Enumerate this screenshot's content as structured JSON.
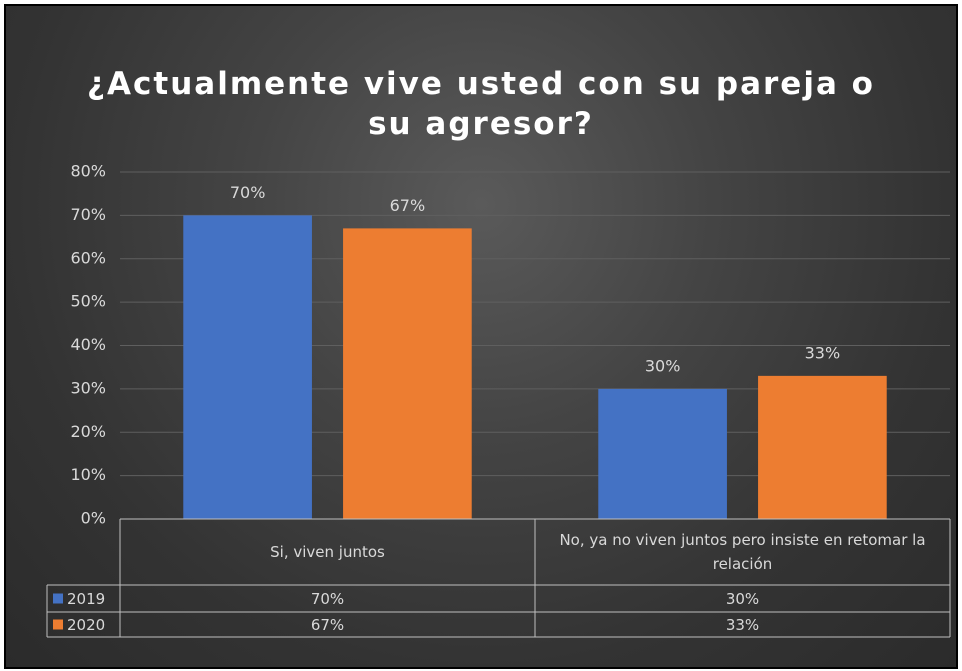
{
  "chart_data": {
    "type": "bar",
    "title": "¿Actualmente vive usted con su pareja o  su agresor?",
    "categories": [
      "Si, viven juntos",
      "No, ya no viven juntos pero insiste en retomar la relación"
    ],
    "series": [
      {
        "name": "2019",
        "color": "#4472c4",
        "values": [
          70,
          30
        ],
        "value_labels": [
          "70%",
          "30%"
        ]
      },
      {
        "name": "2020",
        "color": "#ed7d31",
        "values": [
          67,
          33
        ],
        "value_labels": [
          "67%",
          "33%"
        ]
      }
    ],
    "ylim": [
      0,
      80
    ],
    "yticks": [
      {
        "value": 0,
        "label": "0%"
      },
      {
        "value": 10,
        "label": "10%"
      },
      {
        "value": 20,
        "label": "20%"
      },
      {
        "value": 30,
        "label": "30%"
      },
      {
        "value": 40,
        "label": "40%"
      },
      {
        "value": 50,
        "label": "50%"
      },
      {
        "value": 60,
        "label": "60%"
      },
      {
        "value": 70,
        "label": "70%"
      },
      {
        "value": 80,
        "label": "80%"
      }
    ],
    "grid": true,
    "data_table": true
  }
}
